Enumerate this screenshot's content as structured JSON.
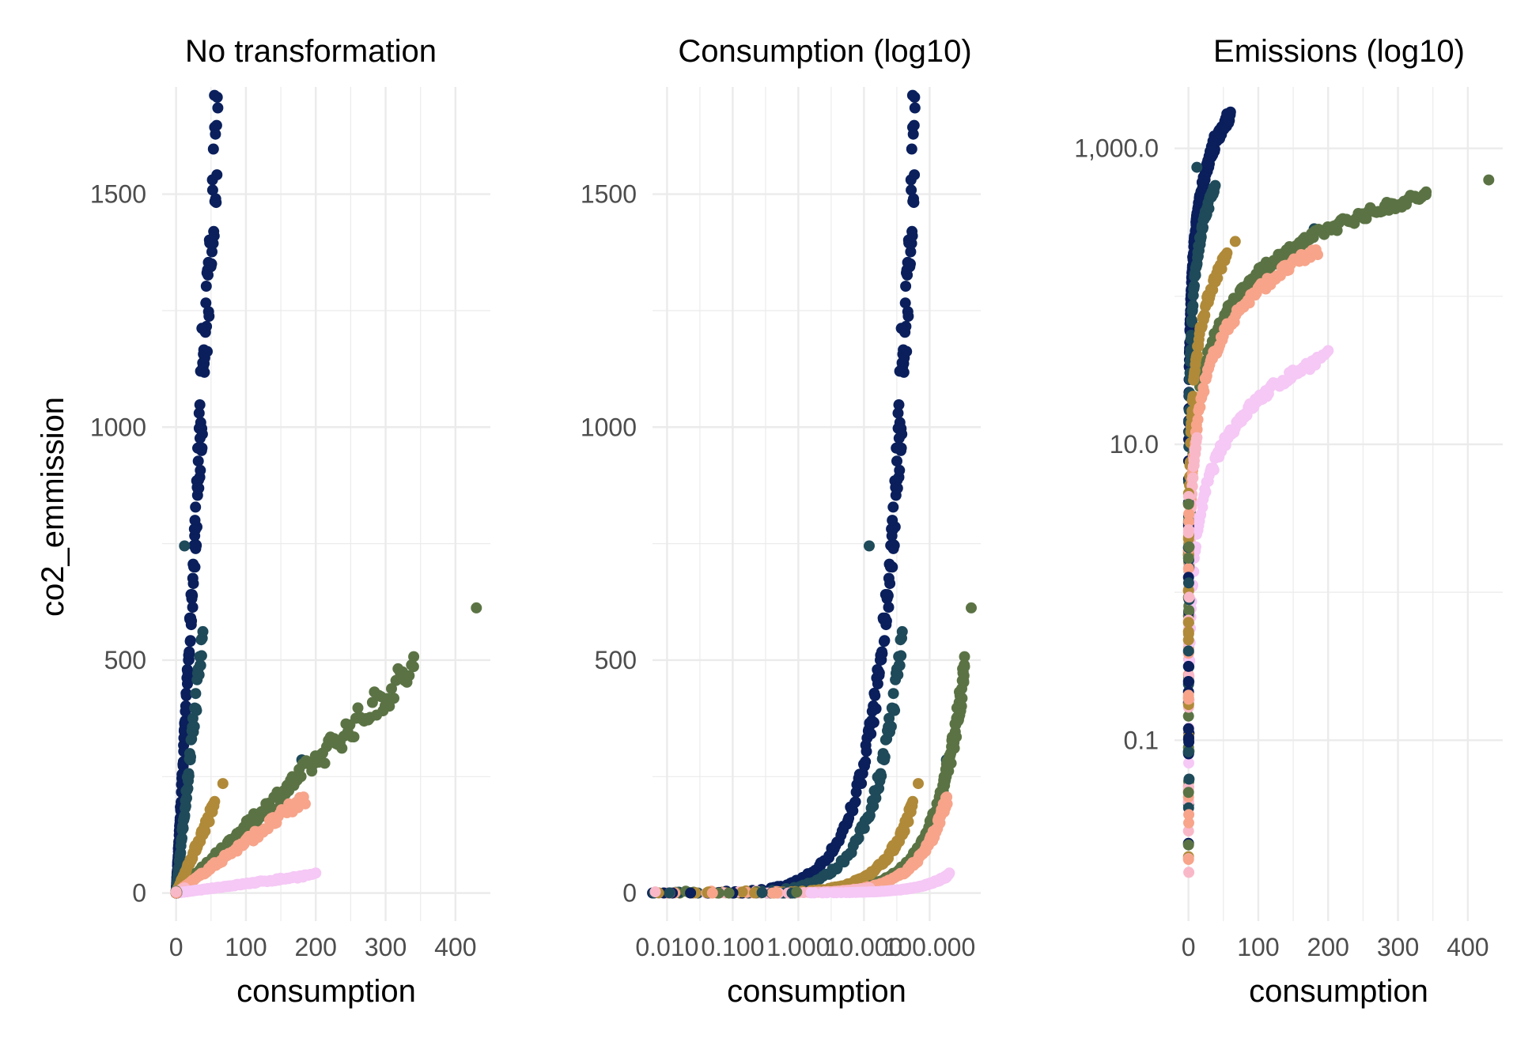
{
  "figure": {
    "ylabel": "co2_emmission",
    "xlabel": "consumption"
  },
  "palette": {
    "navy": "#0a1f5c",
    "teal": "#1e4a5a",
    "olive": "#5b7344",
    "gold": "#b08a38",
    "salmon": "#f7a48a",
    "pink": "#f9b8c8",
    "lilac": "#f5c8f5"
  },
  "chart_data": [
    {
      "type": "scatter",
      "title": "No transformation",
      "xlabel": "consumption",
      "ylabel": "co2_emmission",
      "x_scale": "linear",
      "y_scale": "linear",
      "xlim": [
        -20,
        450
      ],
      "ylim": [
        -60,
        1730
      ],
      "x_ticks": [
        0,
        100,
        200,
        300,
        400
      ],
      "x_tick_labels": [
        "0",
        "100",
        "200",
        "300",
        "400"
      ],
      "y_ticks": [
        0,
        500,
        1000,
        1500
      ],
      "y_tick_labels": [
        "0",
        "500",
        "1000",
        "1500"
      ],
      "grid": true,
      "legend": "none"
    },
    {
      "type": "scatter",
      "title": "Consumption (log10)",
      "xlabel": "consumption",
      "ylabel": "",
      "x_scale": "log10",
      "y_scale": "linear",
      "xlim": [
        0.006,
        600
      ],
      "ylim": [
        -60,
        1730
      ],
      "x_ticks": [
        0.01,
        0.1,
        1,
        10,
        100
      ],
      "x_tick_labels": [
        "0.010",
        "0.100",
        "1.000",
        "10.000",
        "100.000"
      ],
      "y_ticks": [
        0,
        500,
        1000,
        1500
      ],
      "y_tick_labels": [
        "0",
        "500",
        "1000",
        "1500"
      ],
      "grid": true,
      "legend": "none"
    },
    {
      "type": "scatter",
      "title": "Emissions (log10)",
      "xlabel": "consumption",
      "ylabel": "",
      "x_scale": "linear",
      "y_scale": "log10",
      "xlim": [
        -20,
        450
      ],
      "ylim": [
        0.006,
        2600
      ],
      "x_ticks": [
        0,
        100,
        200,
        300,
        400
      ],
      "x_tick_labels": [
        "0",
        "100",
        "200",
        "300",
        "400"
      ],
      "y_ticks": [
        0.1,
        10,
        1000
      ],
      "y_tick_labels": [
        "0.1",
        "10.0",
        "1,000.0"
      ],
      "grid": true,
      "legend": "none"
    }
  ],
  "series": [
    {
      "color": "navy",
      "slope": 28.0,
      "xmax": 60,
      "n": 170,
      "extras": [
        [
          55,
          1712
        ],
        [
          37,
          1212
        ],
        [
          35,
          1120
        ],
        [
          34,
          1048
        ],
        [
          33,
          1030
        ],
        [
          31,
          955
        ],
        [
          27,
          800
        ]
      ]
    },
    {
      "color": "teal",
      "slope": 14.5,
      "xmax": 38,
      "n": 80,
      "extras": [
        [
          180,
          286
        ],
        [
          12,
          745
        ]
      ]
    },
    {
      "color": "olive",
      "slope": 1.42,
      "xmax": 340,
      "n": 170,
      "extras": [
        [
          430,
          612
        ],
        [
          340,
          486
        ]
      ]
    },
    {
      "color": "gold",
      "slope": 3.45,
      "xmax": 55,
      "n": 80,
      "extras": [
        [
          67,
          235
        ]
      ]
    },
    {
      "color": "salmon",
      "slope": 1.1,
      "xmax": 185,
      "n": 110,
      "extras": []
    },
    {
      "color": "pink",
      "slope": 0.95,
      "xmax": 12,
      "n": 40,
      "extras": []
    },
    {
      "color": "lilac",
      "slope": 0.2,
      "xmax": 200,
      "n": 120,
      "extras": []
    }
  ]
}
